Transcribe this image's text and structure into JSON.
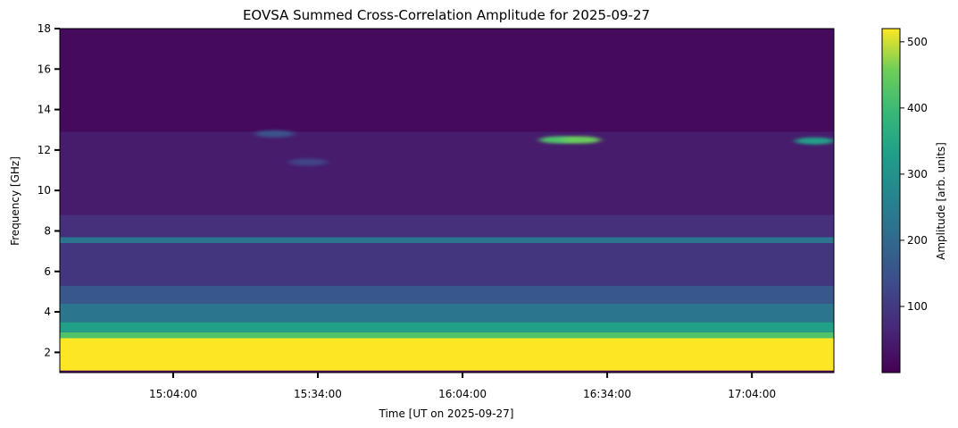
{
  "chart_data": {
    "type": "heatmap",
    "title": "EOVSA Summed Cross-Correlation Amplitude for 2025-09-27",
    "xlabel": "Time [UT on 2025-09-27]",
    "ylabel": "Frequency [GHz]",
    "colorbar_label": "Amplitude [arb. units]",
    "colormap": "viridis",
    "x_range": [
      "14:40:30",
      "17:21:00"
    ],
    "x_ticks": [
      "15:04:00",
      "15:34:00",
      "16:04:00",
      "16:34:00",
      "17:04:00"
    ],
    "ylim": [
      1.0,
      18.0
    ],
    "y_ticks": [
      2,
      4,
      6,
      8,
      10,
      12,
      14,
      16,
      18
    ],
    "y_tick_labels": [
      "2",
      "4",
      "6",
      "8",
      "10",
      "12",
      "14",
      "16",
      "18"
    ],
    "clim": [
      0,
      520
    ],
    "colorbar_ticks": [
      100,
      200,
      300,
      400,
      500
    ],
    "colorbar_tick_labels": [
      "100",
      "200",
      "300",
      "400",
      "500"
    ],
    "bands": [
      {
        "freq_range": [
          1.1,
          2.7
        ],
        "level": 520
      },
      {
        "freq_range": [
          2.7,
          3.0
        ],
        "level": 420
      },
      {
        "freq_range": [
          3.0,
          3.5
        ],
        "level": 330
      },
      {
        "freq_range": [
          3.5,
          4.4
        ],
        "level": 230
      },
      {
        "freq_range": [
          4.4,
          5.3
        ],
        "level": 160
      },
      {
        "freq_range": [
          5.3,
          7.4
        ],
        "level": 90
      },
      {
        "freq_range": [
          7.4,
          7.7
        ],
        "level": 230
      },
      {
        "freq_range": [
          7.7,
          8.8
        ],
        "level": 80
      },
      {
        "freq_range": [
          8.8,
          12.9
        ],
        "level": 45
      },
      {
        "freq_range": [
          12.9,
          18.0
        ],
        "level": 15
      }
    ],
    "features": [
      {
        "time": "16:24:00",
        "freq": 12.5,
        "level": 420
      },
      {
        "time": "16:28:30",
        "freq": 12.5,
        "level": 450
      },
      {
        "time": "17:17:00",
        "freq": 12.45,
        "level": 330
      },
      {
        "time": "15:25:00",
        "freq": 12.8,
        "level": 150
      },
      {
        "time": "15:32:00",
        "freq": 11.4,
        "level": 120
      }
    ]
  }
}
